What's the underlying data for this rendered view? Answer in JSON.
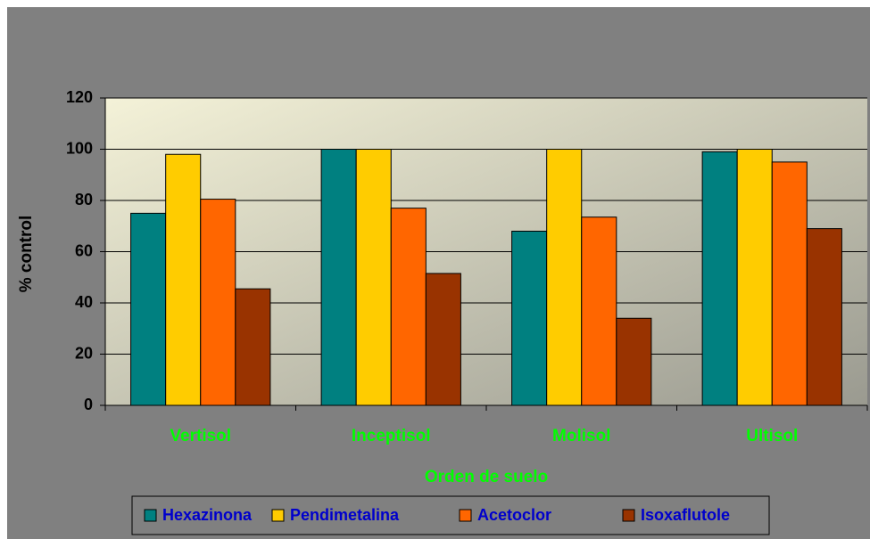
{
  "chart_data": {
    "type": "bar",
    "categories": [
      "Vertisol",
      "Inceptisol",
      "Molisol",
      "Ultisol"
    ],
    "series": [
      {
        "name": "Hexazinona",
        "color": "#008080",
        "values": [
          75,
          100,
          68,
          99
        ]
      },
      {
        "name": "Pendimetalina",
        "color": "#FFCC00",
        "values": [
          98,
          100,
          100,
          100
        ]
      },
      {
        "name": "Acetoclor",
        "color": "#FF6600",
        "values": [
          80.5,
          77,
          73.5,
          95
        ]
      },
      {
        "name": "Isoxaflutole",
        "color": "#993300",
        "values": [
          45.5,
          51.5,
          34,
          69
        ]
      }
    ],
    "x_label": "Orden de suelo",
    "y_label": "% control",
    "ylim": [
      0,
      120
    ],
    "yticks": [
      0,
      20,
      40,
      60,
      80,
      100,
      120
    ],
    "grid": true,
    "legend": "bottom"
  }
}
